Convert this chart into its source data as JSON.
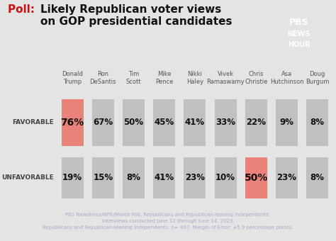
{
  "title_poll": "Poll:  ",
  "title_main": "Likely Republican voter views\non GOP presidential candidates",
  "candidates": [
    "Donald\nTrump",
    "Ron\nDeSantis",
    "Tim\nScott",
    "Mike\nPence",
    "Nikki\nHaley",
    "Vivek\nRamaswamy",
    "Chris\nChristie",
    "Asa\nHutchinson",
    "Doug\nBurgum"
  ],
  "favorable": [
    76,
    67,
    50,
    45,
    41,
    33,
    22,
    9,
    8
  ],
  "unfavorable": [
    19,
    15,
    8,
    41,
    23,
    10,
    50,
    23,
    8
  ],
  "favorable_highlight": [
    0
  ],
  "unfavorable_highlight": [
    6
  ],
  "highlight_color": "#e8827a",
  "bar_color": "#c0c0c0",
  "bg_color": "#e4e4e4",
  "footer_bg": "#1e2d4f",
  "footer_text": "PBS NewsHour/NPR/Marist Poll, Republicans and Republican-leaning independents.\nInterviews conducted June 12 through June 14, 2023.\nRepublicans and Republican-leaning independents: n= 467. Margin of Error: ±5.9 percentage points.",
  "footer_color": "#aaaacc",
  "row_label_favorable": "FAVORABLE",
  "row_label_unfavorable": "UNFAVORABLE",
  "pbs_box_color": "#1e2d4f",
  "pbs_text": "PBS\nNEWS\nHOUR",
  "poll_color": "#cc1111",
  "title_color": "#111111"
}
